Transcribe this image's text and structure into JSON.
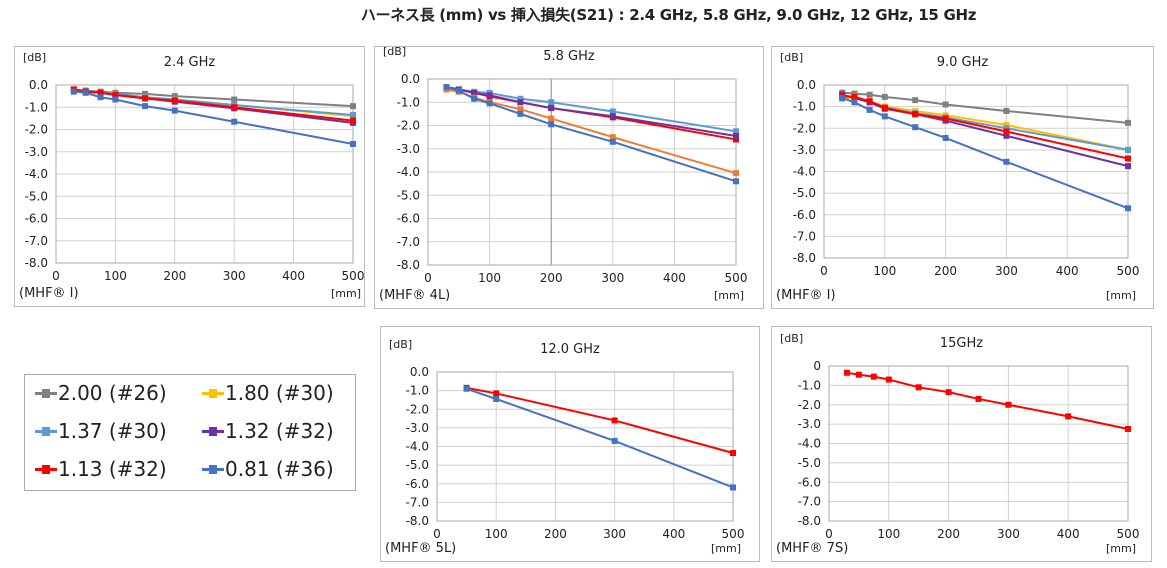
{
  "title": "ハーネス長 (mm) vs 挿入損失(S21) : 2.4 GHz, 5.8 GHz, 9.0 GHz, 12 GHz, 15 GHz",
  "legend": [
    {
      "label": "2.00 (#26)",
      "color": "#808080"
    },
    {
      "label": "1.80 (#30)",
      "color": "#ffc000"
    },
    {
      "label": "1.37 (#30)",
      "color": "#5b9bd5"
    },
    {
      "label": "1.32 (#32)",
      "color": "#7030a0"
    },
    {
      "label": "1.13 (#32)",
      "color": "#ff0000"
    },
    {
      "label": "0.81 (#36)",
      "color": "#4472c4"
    }
  ],
  "chart_data": [
    {
      "type": "line",
      "title": "2.4 GHz",
      "ylabel": "[dB]",
      "xlabel": "[mm]",
      "note": "(MHF® I)",
      "xlim": [
        0,
        500
      ],
      "ylim": [
        -8,
        0
      ],
      "grid": true,
      "xticks": [
        "0",
        "100",
        "200",
        "300",
        "400",
        "500"
      ],
      "yticks": [
        "0.0",
        "-1.0",
        "-2.0",
        "-3.0",
        "-4.0",
        "-5.0",
        "-6.0",
        "-7.0",
        "-8.0"
      ],
      "x": [
        30,
        50,
        75,
        100,
        150,
        200,
        300,
        500
      ],
      "series": [
        {
          "name": "2.00 (#26)",
          "color": "#808080",
          "values": [
            -0.2,
            -0.25,
            -0.3,
            -0.35,
            -0.4,
            -0.5,
            -0.65,
            -0.95
          ]
        },
        {
          "name": "1.80 (#30)",
          "color": "#ffc000",
          "values": [
            -0.2,
            -0.3,
            -0.35,
            -0.4,
            -0.55,
            -0.65,
            -0.9,
            -1.4
          ]
        },
        {
          "name": "1.37 (#30)",
          "color": "#5b9bd5",
          "values": [
            -0.2,
            -0.3,
            -0.35,
            -0.4,
            -0.55,
            -0.65,
            -0.9,
            -1.35
          ]
        },
        {
          "name": "1.32 (#32)",
          "color": "#7030a0",
          "values": [
            -0.2,
            -0.3,
            -0.35,
            -0.45,
            -0.6,
            -0.75,
            -1.05,
            -1.7
          ]
        },
        {
          "name": "1.13 (#32)",
          "color": "#ff0000",
          "values": [
            -0.2,
            -0.3,
            -0.35,
            -0.45,
            -0.6,
            -0.7,
            -1.0,
            -1.6
          ]
        },
        {
          "name": "0.81 (#36)",
          "color": "#4472c4",
          "values": [
            -0.3,
            -0.35,
            -0.55,
            -0.65,
            -0.95,
            -1.15,
            -1.65,
            -2.65
          ]
        }
      ]
    },
    {
      "type": "line",
      "title": "5.8 GHz",
      "ylabel": "[dB]",
      "xlabel": "[mm]",
      "note": "(MHF® 4L)",
      "xlim": [
        0,
        500
      ],
      "ylim": [
        -8,
        0
      ],
      "grid": true,
      "xticks": [
        "0",
        "100",
        "200",
        "300",
        "400",
        "500"
      ],
      "yticks": [
        "0.0",
        "-1.0",
        "-2.0",
        "-3.0",
        "-4.0",
        "-5.0",
        "-6.0",
        "-7.0",
        "-8.0"
      ],
      "x": [
        30,
        50,
        75,
        100,
        150,
        200,
        300,
        500
      ],
      "series": [
        {
          "name": "1.37 (#30)",
          "color": "#5b9bd5",
          "values": [
            -0.35,
            -0.45,
            -0.55,
            -0.6,
            -0.85,
            -1.0,
            -1.4,
            -2.25
          ]
        },
        {
          "name": "1.13 (#32)",
          "color": "#ff0000",
          "values": [
            -0.35,
            -0.45,
            -0.6,
            -0.75,
            -1.0,
            -1.25,
            -1.65,
            -2.6
          ]
        },
        {
          "name": "1.32 (#32)",
          "color": "#7030a0",
          "values": [
            -0.35,
            -0.45,
            -0.6,
            -0.7,
            -1.0,
            -1.25,
            -1.6,
            -2.45
          ]
        },
        {
          "color": "#ed7d31",
          "values": [
            -0.45,
            -0.55,
            -0.8,
            -1.0,
            -1.3,
            -1.7,
            -2.5,
            -4.05
          ]
        },
        {
          "name": "0.81 (#36)",
          "color": "#4472c4",
          "values": [
            -0.35,
            -0.5,
            -0.85,
            -1.05,
            -1.5,
            -1.95,
            -2.7,
            -4.4
          ]
        }
      ]
    },
    {
      "type": "line",
      "title": "9.0 GHz",
      "ylabel": "[dB]",
      "xlabel": "[mm]",
      "note": "(MHF® I)",
      "xlim": [
        0,
        500
      ],
      "ylim": [
        -8,
        0
      ],
      "grid": true,
      "xticks": [
        "0",
        "100",
        "200",
        "300",
        "400",
        "500"
      ],
      "yticks": [
        "0.0",
        "-1.0",
        "-2.0",
        "-3.0",
        "-4.0",
        "-5.0",
        "-6.0",
        "-7.0",
        "-8.0"
      ],
      "x": [
        30,
        50,
        75,
        100,
        150,
        200,
        300,
        500
      ],
      "series": [
        {
          "name": "2.00 (#26)",
          "color": "#808080",
          "values": [
            -0.35,
            -0.4,
            -0.45,
            -0.55,
            -0.7,
            -0.9,
            -1.2,
            -1.75
          ]
        },
        {
          "name": "1.80 (#30)",
          "color": "#ffc000",
          "values": [
            -0.65,
            -0.55,
            -0.75,
            -1.0,
            -1.2,
            -1.4,
            -1.85,
            -3.0
          ]
        },
        {
          "name": "1.37 (#30)",
          "color": "#5b9bd5",
          "values": [
            -0.55,
            -0.55,
            -0.8,
            -1.05,
            -1.3,
            -1.5,
            -2.0,
            -3.0
          ]
        },
        {
          "name": "1.32 (#32)",
          "color": "#7030a0",
          "values": [
            -0.45,
            -0.6,
            -0.8,
            -1.1,
            -1.35,
            -1.65,
            -2.35,
            -3.75
          ]
        },
        {
          "name": "1.13 (#32)",
          "color": "#ff0000",
          "values": [
            -0.5,
            -0.55,
            -0.75,
            -1.05,
            -1.35,
            -1.55,
            -2.15,
            -3.4
          ]
        },
        {
          "name": "0.81 (#36)",
          "color": "#4472c4",
          "values": [
            -0.6,
            -0.8,
            -1.15,
            -1.45,
            -1.95,
            -2.45,
            -3.55,
            -5.7
          ]
        }
      ]
    },
    {
      "type": "line",
      "title": "12.0 GHz",
      "ylabel": "[dB]",
      "xlabel": "[mm]",
      "note": "(MHF® 5L)",
      "xlim": [
        0,
        500
      ],
      "ylim": [
        -8,
        0
      ],
      "grid": true,
      "xticks": [
        "0",
        "100",
        "200",
        "300",
        "400",
        "500"
      ],
      "yticks": [
        "0.0",
        "-1.0",
        "-2.0",
        "-3.0",
        "-4.0",
        "-5.0",
        "-6.0",
        "-7.0",
        "-8.0"
      ],
      "x": [
        50,
        100,
        300,
        500
      ],
      "series": [
        {
          "name": "1.13 (#32)",
          "color": "#ff0000",
          "values": [
            -0.85,
            -1.15,
            -2.6,
            -4.35
          ]
        },
        {
          "name": "0.81 (#36)",
          "color": "#4472c4",
          "values": [
            -0.9,
            -1.45,
            -3.7,
            -6.2
          ]
        }
      ]
    },
    {
      "type": "line",
      "title": "15GHz",
      "ylabel": "[dB]",
      "xlabel": "[mm]",
      "note": "(MHF® 7S)",
      "xlim": [
        0,
        500
      ],
      "ylim": [
        -8,
        0
      ],
      "grid": true,
      "xticks": [
        "0",
        "100",
        "200",
        "300",
        "400",
        "500"
      ],
      "yticks": [
        "0",
        "-1.0",
        "-2.0",
        "-3.0",
        "-4.0",
        "-5.0",
        "-6.0",
        "-7.0",
        "-8.0"
      ],
      "x": [
        30,
        50,
        75,
        100,
        150,
        200,
        250,
        300,
        400,
        500
      ],
      "series": [
        {
          "name": "1.13 (#32)",
          "color": "#ff0000",
          "values": [
            -0.35,
            -0.45,
            -0.55,
            -0.7,
            -1.1,
            -1.35,
            -1.7,
            -2.0,
            -2.6,
            -3.25
          ]
        }
      ]
    }
  ]
}
